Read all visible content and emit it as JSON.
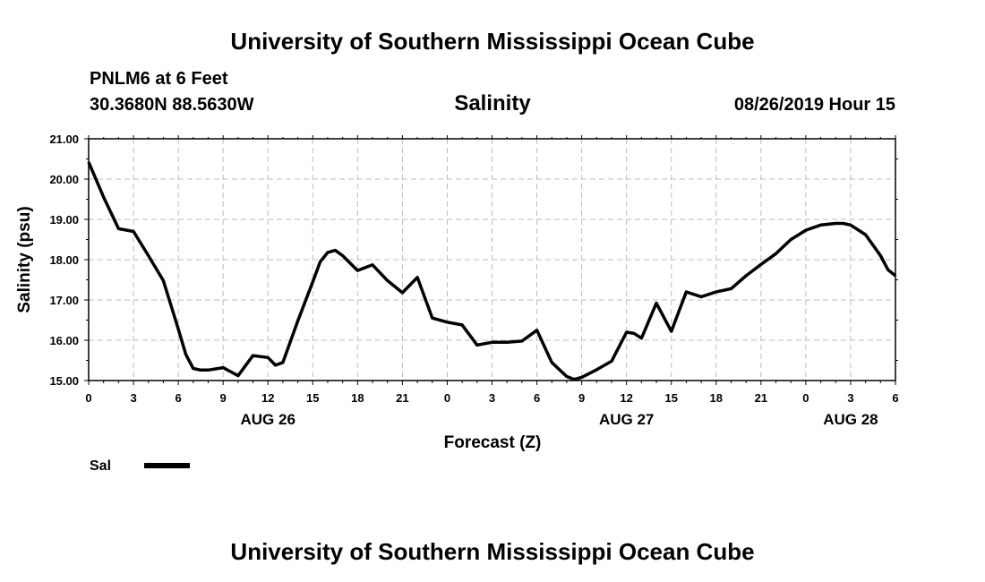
{
  "page": {
    "title_top": "University of Southern Mississippi Ocean Cube",
    "title_bottom": "University of Southern Mississippi Ocean Cube",
    "station": "PNLM6 at 6 Feet",
    "coords": "30.3680N 88.5630W",
    "variable": "Salinity",
    "datetime": "08/26/2019 Hour 15"
  },
  "chart_data": {
    "type": "line",
    "title": "Salinity",
    "xlabel": "Forecast (Z)",
    "ylabel": "Salinity (psu)",
    "ylim": [
      15.0,
      21.0
    ],
    "xlim": [
      0,
      54
    ],
    "grid": true,
    "yticks": [
      "15.00",
      "16.00",
      "17.00",
      "18.00",
      "19.00",
      "20.00",
      "21.00"
    ],
    "xtick_labels": [
      "0",
      "3",
      "6",
      "9",
      "12",
      "15",
      "18",
      "21",
      "0",
      "3",
      "6",
      "9",
      "12",
      "15",
      "18",
      "21",
      "0",
      "3",
      "6"
    ],
    "date_labels": [
      {
        "label": "AUG 26",
        "x": 12
      },
      {
        "label": "AUG 27",
        "x": 36
      },
      {
        "label": "AUG 28",
        "x": 51
      }
    ],
    "legend": {
      "position": "bottom-left",
      "entries": [
        "Sal"
      ]
    },
    "series": [
      {
        "name": "Sal",
        "color": "#000000",
        "x": [
          0,
          1,
          2,
          3,
          4,
          5,
          6,
          6.5,
          7,
          7.5,
          8,
          9,
          10,
          11,
          12,
          12.5,
          13,
          14,
          15,
          15.5,
          16,
          16.5,
          17,
          18,
          19,
          20,
          21,
          22,
          23,
          24,
          25,
          26,
          27,
          28,
          29,
          30,
          31,
          32,
          32.5,
          33,
          34,
          35,
          36,
          36.5,
          37,
          38,
          39,
          40,
          41,
          42,
          43,
          44,
          45,
          46,
          47,
          48,
          49,
          49.5,
          50,
          50.5,
          51,
          52,
          53,
          53.5,
          54
        ],
        "values": [
          20.42,
          19.55,
          18.77,
          18.7,
          18.1,
          17.48,
          16.28,
          15.65,
          15.3,
          15.26,
          15.26,
          15.32,
          15.12,
          15.62,
          15.57,
          15.38,
          15.45,
          16.48,
          17.45,
          17.95,
          18.18,
          18.23,
          18.1,
          17.73,
          17.87,
          17.48,
          17.18,
          17.56,
          16.55,
          16.45,
          16.38,
          15.88,
          15.95,
          15.95,
          15.98,
          16.25,
          15.45,
          15.1,
          15.03,
          15.08,
          15.27,
          15.48,
          16.2,
          16.17,
          16.05,
          16.92,
          16.22,
          17.2,
          17.08,
          17.2,
          17.28,
          17.6,
          17.88,
          18.15,
          18.5,
          18.73,
          18.86,
          18.88,
          18.9,
          18.9,
          18.86,
          18.62,
          18.1,
          17.75,
          17.6
        ]
      }
    ]
  }
}
